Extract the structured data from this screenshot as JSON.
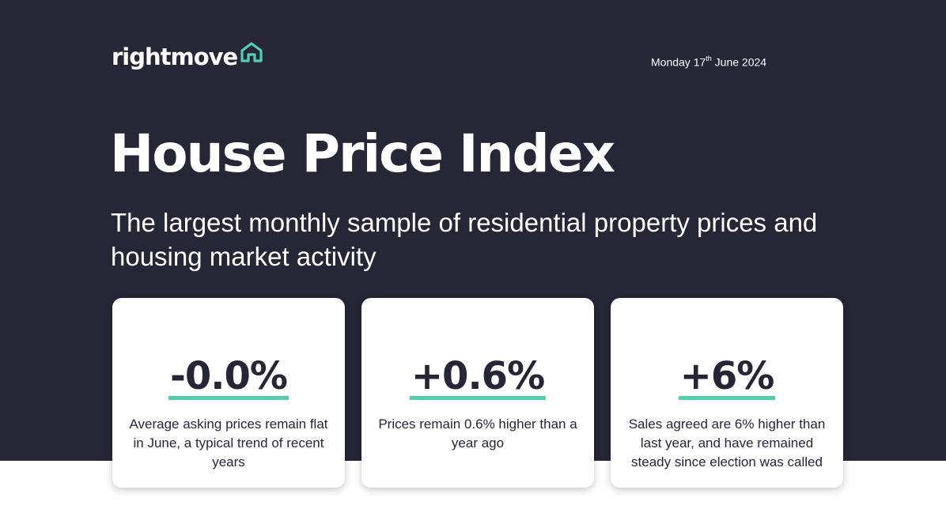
{
  "brand": {
    "logo_text": "rightmove",
    "logo_icon": "house-icon"
  },
  "date": {
    "day": "Monday 17",
    "suffix": "th",
    "rest": " June 2024"
  },
  "hero": {
    "title": "House Price Index",
    "subtitle": "The largest monthly sample of residential property prices and housing market activity"
  },
  "cards": [
    {
      "figure": "-0.0%",
      "text": "Average asking prices remain flat in June, a typical trend of recent years"
    },
    {
      "figure": "+0.6%",
      "text": "Prices remain 0.6% higher than a year ago"
    },
    {
      "figure": "+6%",
      "text": "Sales agreed are 6% higher than last year, and have remained steady since election was called"
    }
  ],
  "colors": {
    "background": "#262637",
    "accent": "#4fd1b0",
    "card": "#ffffff"
  }
}
